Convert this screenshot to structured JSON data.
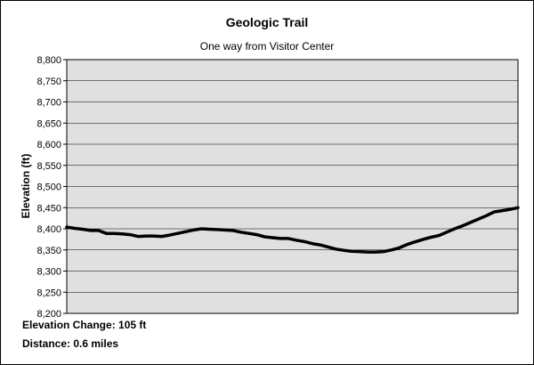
{
  "chart_data": {
    "type": "line",
    "title": "Geologic Trail",
    "subtitle": "One way from Visitor Center",
    "ylabel": "Elevation (ft)",
    "xlabel": "",
    "ylim": [
      8200,
      8800
    ],
    "yticks": [
      8200,
      8250,
      8300,
      8350,
      8400,
      8450,
      8500,
      8550,
      8600,
      8650,
      8700,
      8750,
      8800
    ],
    "ytick_labels": [
      "8,200",
      "8,250",
      "8,300",
      "8,350",
      "8,400",
      "8,450",
      "8,500",
      "8,550",
      "8,600",
      "8,650",
      "8,700",
      "8,750",
      "8,800"
    ],
    "grid": true,
    "plot_background": "#e0e0e0",
    "line_color": "#000000",
    "series": [
      {
        "values": [
          8404,
          8401,
          8399,
          8396,
          8396,
          8389,
          8389,
          8388,
          8386,
          8382,
          8383,
          8383,
          8382,
          8385,
          8389,
          8393,
          8397,
          8400,
          8399,
          8398,
          8397,
          8396,
          8392,
          8389,
          8386,
          8381,
          8379,
          8377,
          8377,
          8373,
          8370,
          8365,
          8362,
          8357,
          8352,
          8349,
          8347,
          8346,
          8345,
          8345,
          8346,
          8350,
          8355,
          8363,
          8369,
          8375,
          8380,
          8384,
          8392,
          8400,
          8407,
          8415,
          8423,
          8431,
          8440,
          8443,
          8446,
          8450
        ]
      }
    ]
  },
  "footnotes": {
    "elevation_change": "Elevation Change: 105 ft",
    "distance": "Distance: 0.6 miles"
  }
}
